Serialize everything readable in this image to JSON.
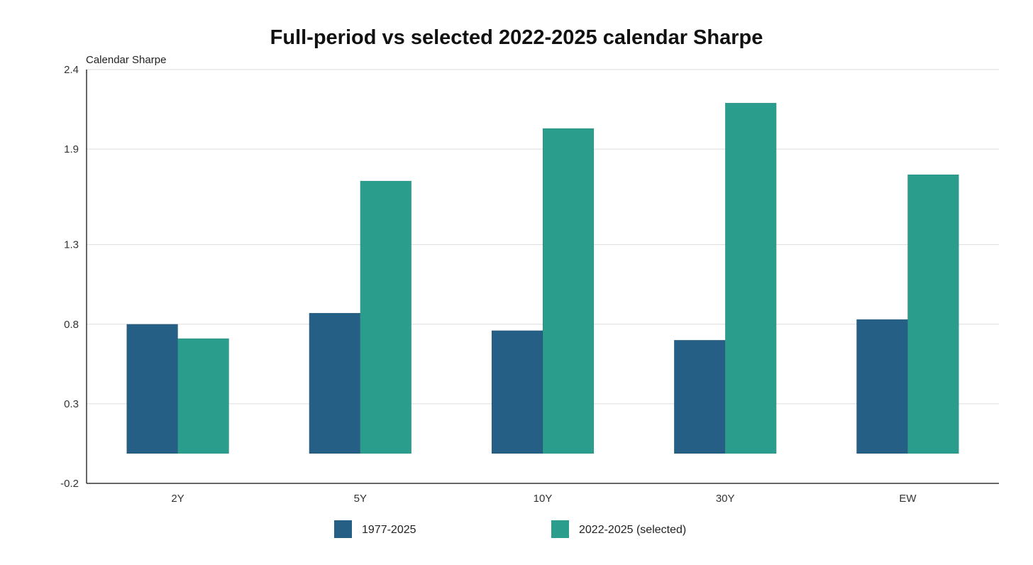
{
  "chart_data": {
    "type": "bar",
    "title": "Full-period vs selected 2022-2025 calendar Sharpe",
    "xlabel": "",
    "ylabel": "Calendar Sharpe",
    "ylim": [
      -0.2,
      2.4
    ],
    "yticks": [
      -0.2,
      0.3,
      0.8,
      1.3,
      1.9,
      2.4
    ],
    "categories": [
      "2Y",
      "5Y",
      "10Y",
      "30Y",
      "EW"
    ],
    "series": [
      {
        "name": "1977-2025",
        "color": "#265f86",
        "values": [
          0.8,
          0.87,
          0.76,
          0.7,
          0.83
        ]
      },
      {
        "name": "2022-2025 (selected)",
        "color": "#2a9d8c",
        "values": [
          0.71,
          1.7,
          2.03,
          2.19,
          1.74
        ]
      }
    ],
    "grid": true,
    "legend_position": "bottom-center"
  }
}
